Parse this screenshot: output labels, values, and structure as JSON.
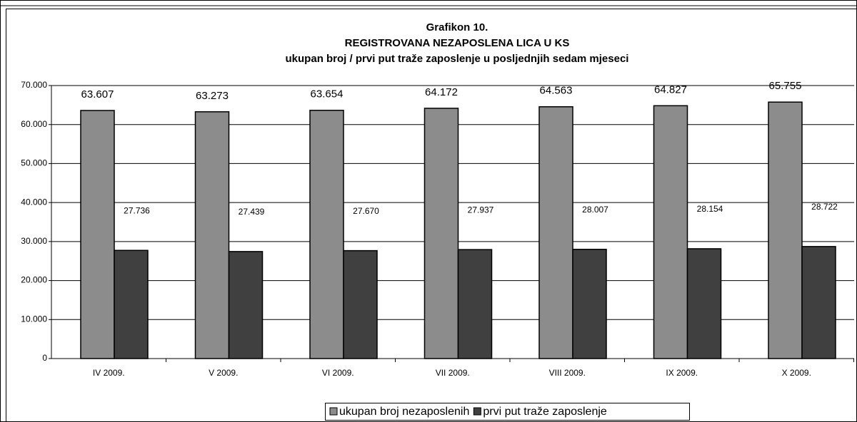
{
  "chart_data": {
    "type": "bar",
    "title": "Grafikon 10.",
    "subtitle": "REGISTROVANA NEZAPOSLENA LICA U KS",
    "subtitle2": "ukupan broj / prvi put traže zaposlenje u posljednjih sedam mjeseci",
    "categories": [
      "IV 2009.",
      "V 2009.",
      "VI 2009.",
      "VII 2009.",
      "VIII 2009.",
      "IX 2009.",
      "X 2009."
    ],
    "series": [
      {
        "name": "ukupan broj nezaposlenih",
        "color": "#8c8c8c",
        "values": [
          63607,
          63273,
          63654,
          64172,
          64563,
          64827,
          65755
        ],
        "value_labels": [
          "63.607",
          "63.273",
          "63.654",
          "64.172",
          "64.563",
          "64.827",
          "65.755"
        ]
      },
      {
        "name": "prvi put traže zaposlenje",
        "color": "#404040",
        "values": [
          27736,
          27439,
          27670,
          27937,
          28007,
          28154,
          28722
        ],
        "value_labels": [
          "27.736",
          "27.439",
          "27.670",
          "27.937",
          "28.007",
          "28.154",
          "28.722"
        ]
      }
    ],
    "ylim": [
      0,
      70000
    ],
    "yticks": [
      0,
      {
        "value": 10000,
        "label": "10.000"
      },
      {
        "value": 20000,
        "label": "20.000"
      },
      {
        "value": 30000,
        "label": "30.000"
      },
      {
        "value": 40000,
        "label": "40.000"
      },
      {
        "value": 50000,
        "label": "50.000"
      },
      {
        "value": 60000,
        "label": "60.000"
      },
      {
        "value": 70000,
        "label": "70.000"
      }
    ],
    "grid": true,
    "legend": "bottom"
  }
}
